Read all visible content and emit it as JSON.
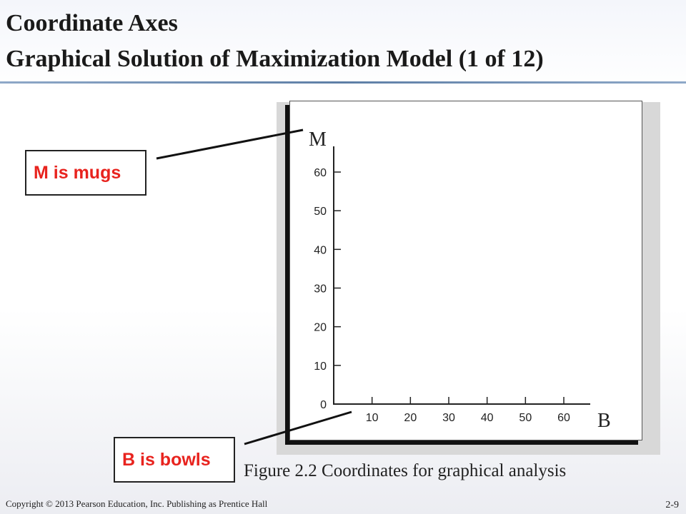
{
  "slide": {
    "title_line1": "Coordinate Axes",
    "title_line2": "Graphical Solution of Maximization Model (1 of 12)",
    "caption": "Figure 2.2  Coordinates for graphical analysis",
    "footer": "Copyright © 2013 Pearson Education, Inc. Publishing as Prentice Hall",
    "page_number": "2-9"
  },
  "callouts": {
    "m_label": "M is mugs",
    "b_label": "B is bowls"
  },
  "colors": {
    "callout_text": "#e8231e",
    "rule": "#5d7ea6"
  },
  "chart_data": {
    "type": "line",
    "xlabel": "B",
    "ylabel": "M",
    "x_ticks": [
      "10",
      "20",
      "30",
      "40",
      "50",
      "60"
    ],
    "y_ticks": [
      "0",
      "10",
      "20",
      "30",
      "40",
      "50",
      "60"
    ],
    "xlim": [
      0,
      65
    ],
    "ylim": [
      0,
      60
    ],
    "series": []
  }
}
